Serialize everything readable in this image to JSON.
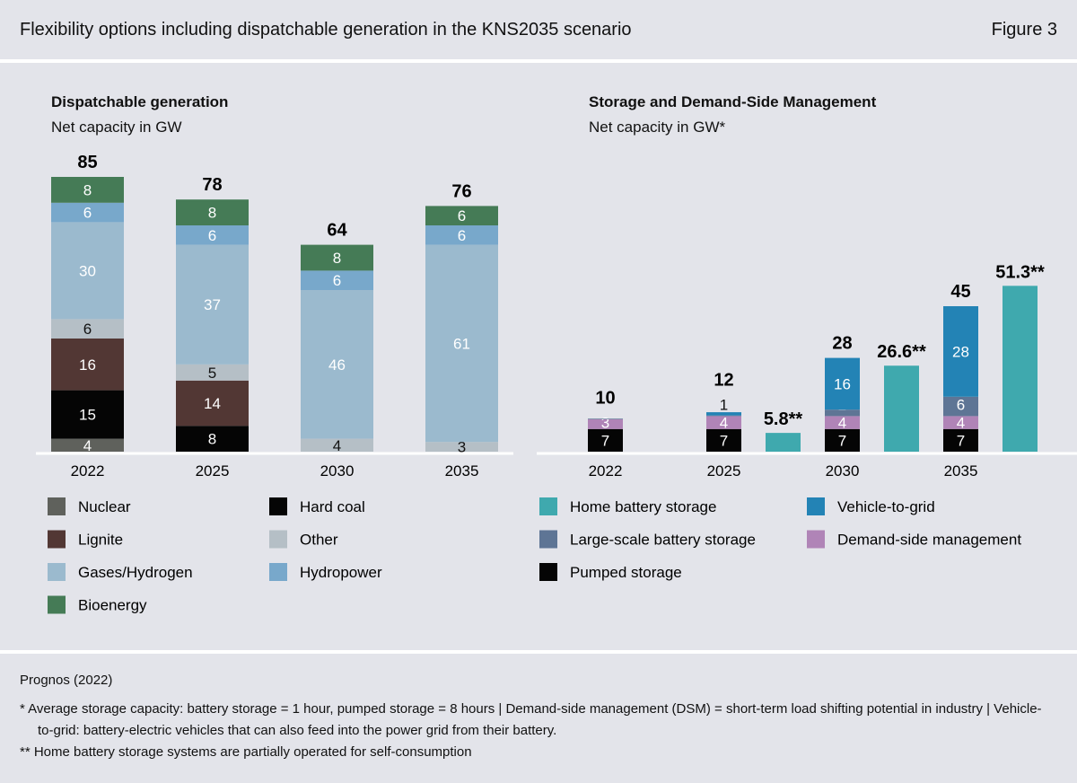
{
  "header": {
    "title": "Flexibility options including dispatchable generation in the KNS2035 scenario",
    "figure": "Figure 3"
  },
  "footer": {
    "source": "Prognos (2022)",
    "note1": "*  Average storage capacity: battery storage = 1 hour, pumped storage = 8 hours | Demand-side management (DSM) = short-term load shifting potential in industry | Vehicle-to-grid: battery-electric vehicles that can also feed into the power grid from their battery.",
    "note2": "** Home battery storage systems are partially operated for self-consumption"
  },
  "chart_data": [
    {
      "type": "bar",
      "stacked": true,
      "title": "Dispatchable generation",
      "subtitle": "Net capacity in GW",
      "categories": [
        "2022",
        "2025",
        "2030",
        "2035"
      ],
      "totals": [
        "85",
        "78",
        "64",
        "76"
      ],
      "series": [
        {
          "name": "Nuclear",
          "color": "#5f615c",
          "label_color": "#fff",
          "values": [
            4,
            0,
            0,
            0
          ]
        },
        {
          "name": "Hard coal",
          "color": "#050505",
          "label_color": "#fff",
          "values": [
            15,
            8,
            0,
            0
          ]
        },
        {
          "name": "Lignite",
          "color": "#523734",
          "label_color": "#fff",
          "values": [
            16,
            14,
            0,
            0
          ]
        },
        {
          "name": "Other",
          "color": "#b5bfc6",
          "label_color": "#111",
          "values": [
            6,
            5,
            4,
            3
          ]
        },
        {
          "name": "Gases/Hydrogen",
          "color": "#9bbace",
          "label_color": "#fff",
          "values": [
            30,
            37,
            46,
            61
          ]
        },
        {
          "name": "Hydropower",
          "color": "#78a8cb",
          "label_color": "#fff",
          "values": [
            6,
            6,
            6,
            6
          ]
        },
        {
          "name": "Bioenergy",
          "color": "#457b56",
          "label_color": "#fff",
          "values": [
            8,
            8,
            8,
            6
          ]
        }
      ],
      "legend_order": [
        "Nuclear",
        "Hard coal",
        "Lignite",
        "Other",
        "Gases/Hydrogen",
        "Hydropower",
        "Bioenergy"
      ]
    },
    {
      "type": "bar",
      "stacked": true,
      "title": "Storage and Demand-Side Management",
      "subtitle": "Net capacity in GW*",
      "categories": [
        "2022",
        "2025",
        "2030",
        "2035"
      ],
      "totals": [
        "10",
        "12",
        "28",
        "45"
      ],
      "series": [
        {
          "name": "Pumped storage",
          "color": "#050505",
          "label_color": "#fff",
          "values": [
            7,
            7,
            7,
            7
          ]
        },
        {
          "name": "Demand-side management",
          "color": "#b084b7",
          "label_color": "#fff",
          "values": [
            3,
            4,
            4,
            4
          ]
        },
        {
          "name": "Large-scale battery storage",
          "color": "#5e7595",
          "label_color": "#fff",
          "values": [
            0.2,
            0.2,
            2,
            6
          ]
        },
        {
          "name": "Vehicle-to-grid",
          "color": "#2383b5",
          "label_color": "#fff",
          "values": [
            0,
            1,
            16,
            28
          ]
        }
      ],
      "labels": [
        [
          "7",
          "3",
          "",
          ""
        ],
        [
          "7",
          "4",
          "",
          "1"
        ],
        [
          "7",
          "4",
          "2",
          "16"
        ],
        [
          "7",
          "4",
          "6",
          "28"
        ]
      ],
      "home_battery": {
        "name": "Home battery storage",
        "color": "#3fa9ae",
        "values": [
          null,
          5.8,
          26.6,
          51.3
        ],
        "labels": [
          "",
          "5.8**",
          "26.6**",
          "51.3**"
        ]
      },
      "legend_order": [
        "Home battery storage",
        "Vehicle-to-grid",
        "Large-scale battery storage",
        "Demand-side management",
        "Pumped storage"
      ]
    }
  ]
}
